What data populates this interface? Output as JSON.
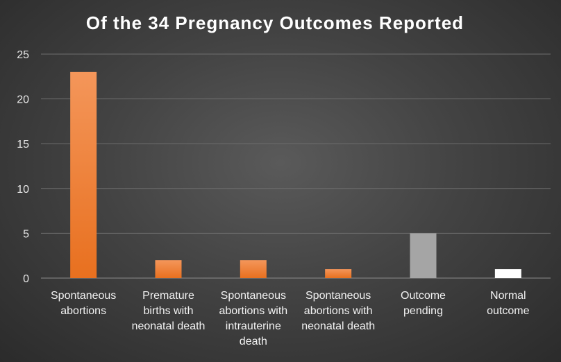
{
  "chart_data": {
    "type": "bar",
    "title": "Of the 34 Pregnancy Outcomes Reported",
    "xlabel": "",
    "ylabel": "",
    "ylim": [
      0,
      25
    ],
    "yticks": [
      0,
      5,
      10,
      15,
      20,
      25
    ],
    "grid": true,
    "categories": [
      "Spontaneous abortions",
      "Premature births with neonatal death",
      "Spontaneous abortions with intrauterine death",
      "Spontaneous abortions with neonatal death",
      "Outcome pending",
      "Normal outcome"
    ],
    "category_lines": [
      [
        "Spontaneous",
        "abortions"
      ],
      [
        "Premature",
        "births with",
        "neonatal death"
      ],
      [
        "Spontaneous",
        "abortions with",
        "intrauterine",
        "death"
      ],
      [
        "Spontaneous",
        "abortions with",
        "neonatal death"
      ],
      [
        "Outcome",
        "pending"
      ],
      [
        "Normal",
        "outcome"
      ]
    ],
    "values": [
      23,
      2,
      2,
      1,
      5,
      1
    ],
    "bar_colors": [
      "#ed7d31",
      "#ed7d31",
      "#ed7d31",
      "#ed7d31",
      "#a5a5a5",
      "#ffffff"
    ]
  }
}
